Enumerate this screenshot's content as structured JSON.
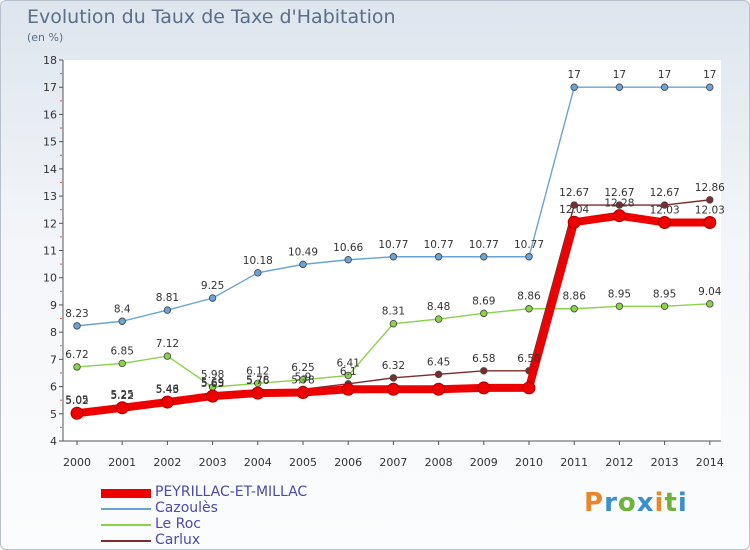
{
  "title": "Evolution du Taux de Taxe d'Habitation",
  "unit": "(en %)",
  "logo": {
    "text": "Proxiti",
    "colors": [
      "#e8872a",
      "#3a8fd0",
      "#6fb33a",
      "#3a8fd0",
      "#e8872a",
      "#6fb33a",
      "#3a8fd0"
    ]
  },
  "chart_data": {
    "type": "line",
    "title": "Evolution du Taux de Taxe d'Habitation",
    "ylabel": "(en %)",
    "xlabel": "",
    "x": [
      "2000",
      "2001",
      "2002",
      "2003",
      "2004",
      "2005",
      "2006",
      "2007",
      "2008",
      "2009",
      "2010",
      "2011",
      "2012",
      "2013",
      "2014"
    ],
    "ylim": [
      4,
      18
    ],
    "yticks": [
      "4",
      "5",
      "6",
      "7",
      "8",
      "9",
      "10",
      "11",
      "12",
      "13",
      "14",
      "15",
      "16",
      "17",
      "18"
    ],
    "grid": false,
    "legend_position": "bottom-left",
    "series": [
      {
        "name": "PEYRILLAC-ET-MILLAC",
        "color": "#ee0000",
        "emphasis": true,
        "values": [
          5.02,
          5.22,
          5.43,
          5.65,
          5.76,
          5.78,
          5.9,
          5.9,
          5.9,
          5.95,
          5.95,
          12.04,
          12.28,
          12.03,
          12.03
        ],
        "labels": [
          "5.02",
          "5.22",
          "5.43",
          "5.65",
          "5.76",
          "5.78",
          "",
          "",
          "",
          "",
          "",
          "12.04",
          "12.28",
          "12.03",
          "12.03"
        ]
      },
      {
        "name": "Cazoulès",
        "color": "#6aa3d6",
        "values": [
          8.23,
          8.4,
          8.81,
          9.25,
          10.18,
          10.49,
          10.66,
          10.77,
          10.77,
          10.77,
          10.77,
          17,
          17,
          17,
          17
        ],
        "labels": [
          "8.23",
          "8.4",
          "8.81",
          "9.25",
          "10.18",
          "10.49",
          "10.66",
          "10.77",
          "10.77",
          "10.77",
          "10.77",
          "17",
          "17",
          "17",
          "17"
        ]
      },
      {
        "name": "Le Roc",
        "color": "#8ad24a",
        "values": [
          6.72,
          6.85,
          7.12,
          5.98,
          6.12,
          6.25,
          6.41,
          8.31,
          8.48,
          8.69,
          8.86,
          8.86,
          8.95,
          8.95,
          9.04
        ],
        "labels": [
          "6.72",
          "6.85",
          "7.12",
          "5.98",
          "6.12",
          "6.25",
          "6.41",
          "8.31",
          "8.48",
          "8.69",
          "8.86",
          "8.86",
          "8.95",
          "8.95",
          "9.04"
        ]
      },
      {
        "name": "Carlux",
        "color": "#7a2d2d",
        "values": [
          5.05,
          5.25,
          5.46,
          5.69,
          5.78,
          5.9,
          6.1,
          6.32,
          6.45,
          6.58,
          6.58,
          12.67,
          12.67,
          12.67,
          12.86
        ],
        "labels": [
          "5.05",
          "5.25",
          "5.46",
          "5.69",
          "5.78",
          "5.9",
          "6.1",
          "6.32",
          "6.45",
          "6.58",
          "6.58",
          "12.67",
          "12.67",
          "12.67",
          "12.86"
        ]
      }
    ]
  }
}
